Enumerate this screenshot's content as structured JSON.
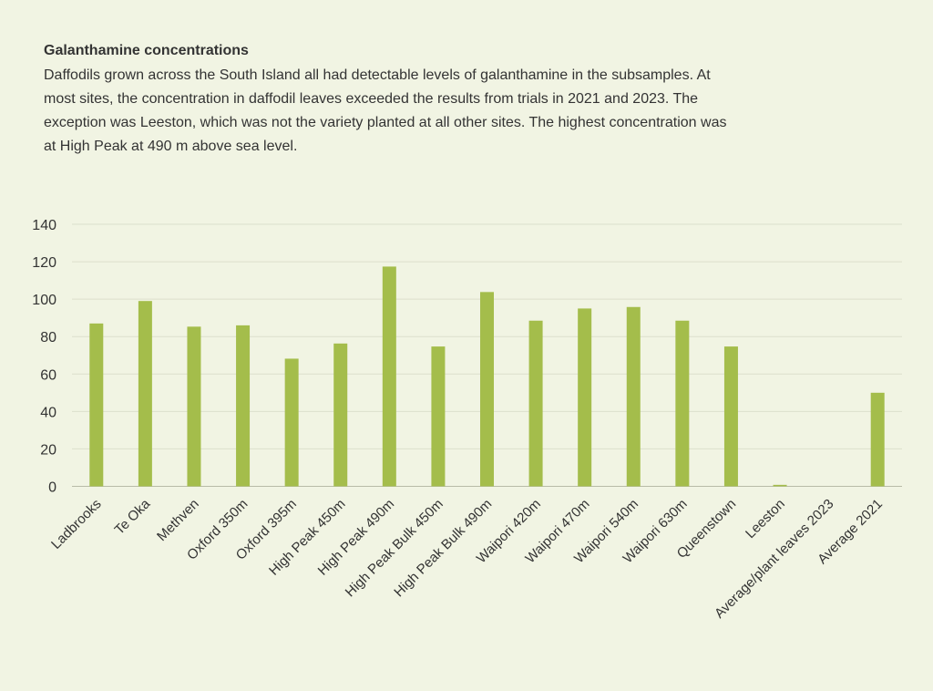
{
  "header": {
    "title": "Galanthamine concentrations",
    "description": "Daffodils grown across the South Island all had detectable levels of galanthamine in the subsamples. At most sites, the concentration in daffodil leaves exceeded the results from trials in 2021 and 2023. The exception was Leeston, which was not the variety planted at all other sites. The highest concentration was at High Peak at 490 m above sea level."
  },
  "chart_data": {
    "type": "bar",
    "title": "",
    "xlabel": "",
    "ylabel": "",
    "ylim": [
      0,
      140
    ],
    "yticks": [
      "0",
      "20",
      "40",
      "60",
      "80",
      "100",
      "120",
      "140"
    ],
    "grid": true,
    "bar_color": "#a4bd4b",
    "categories": [
      "Ladbrooks",
      "Te Oka",
      "Methven",
      "Oxford 350m",
      "Oxford 395m",
      "High Peak 450m",
      "High Peak 490m",
      "High Peak Bulk 450m",
      "High Peak Bulk 490m",
      "Waipori 420m",
      "Waipori 470m",
      "Waipori 540m",
      "Waipori 630m",
      "Queenstown",
      "Leeston",
      "Average/plant leaves 2023",
      "Average 2021"
    ],
    "values": [
      87,
      99,
      85.3,
      86,
      68.2,
      76.3,
      117.4,
      74.7,
      103.8,
      88.5,
      95,
      95.8,
      88.5,
      74.7,
      0.8,
      0,
      50
    ]
  }
}
